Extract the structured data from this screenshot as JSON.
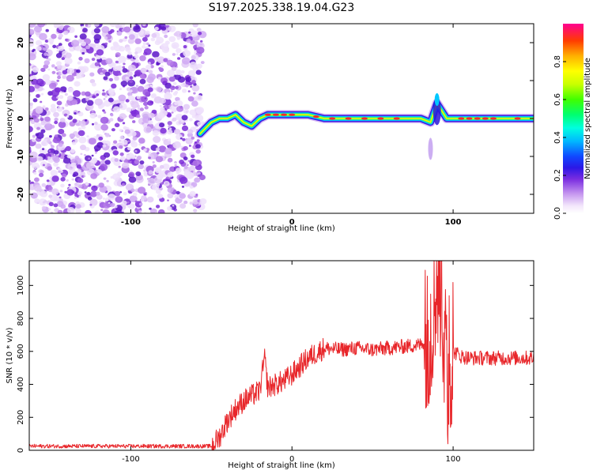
{
  "title": "S197.2025.338.19.04.G23",
  "chart_data": [
    {
      "type": "heatmap",
      "name": "spectrogram",
      "xlabel": "Height of straight line (km)",
      "ylabel": "Frequency (Hz)",
      "xlim": [
        -163,
        150
      ],
      "ylim": [
        -25,
        25
      ],
      "xticks": [
        -100,
        0,
        100
      ],
      "yticks": [
        20,
        10,
        0,
        -10,
        -20
      ],
      "noise_region_x": [
        -163,
        -57
      ],
      "signal_ridge": {
        "x": [
          -57,
          -50,
          -45,
          -40,
          -35,
          -30,
          -25,
          -20,
          -15,
          -10,
          0,
          10,
          20,
          40,
          60,
          80,
          86,
          90,
          93,
          96,
          100,
          110,
          120,
          140,
          150
        ],
        "freq": [
          -4,
          -1,
          0,
          0,
          1,
          -1,
          -2,
          0,
          1,
          1,
          1,
          1,
          0,
          0,
          0,
          0,
          -1,
          4,
          2,
          0,
          0,
          0,
          0,
          0,
          0
        ]
      },
      "colorbar": {
        "label": "Normalized spectral amplitude",
        "range": [
          0.0,
          1.0
        ],
        "ticks": [
          0.0,
          0.2,
          0.4,
          0.6,
          0.8
        ]
      }
    },
    {
      "type": "line",
      "name": "snr",
      "xlabel": "Height of straight line (km)",
      "ylabel": "SNR (10 * v/v)",
      "xlim": [
        -163,
        150
      ],
      "ylim": [
        0,
        1150
      ],
      "xticks": [
        -100,
        0,
        100
      ],
      "yticks": [
        0,
        200,
        400,
        600,
        800,
        1000
      ],
      "color": "#e8262a",
      "series": [
        {
          "name": "SNR",
          "x": [
            -163,
            -140,
            -120,
            -100,
            -80,
            -60,
            -50,
            -45,
            -40,
            -35,
            -30,
            -25,
            -20,
            -17,
            -15,
            -10,
            -5,
            0,
            10,
            20,
            30,
            40,
            50,
            60,
            70,
            80,
            85,
            88,
            90,
            92,
            94,
            96,
            98,
            100,
            105,
            110,
            120,
            130,
            140,
            150
          ],
          "values": [
            25,
            25,
            25,
            25,
            25,
            25,
            25,
            80,
            180,
            250,
            300,
            330,
            360,
            560,
            380,
            400,
            420,
            460,
            560,
            620,
            610,
            620,
            610,
            620,
            630,
            640,
            700,
            900,
            1100,
            1000,
            800,
            400,
            550,
            600,
            570,
            560,
            560,
            560,
            560,
            560
          ]
        }
      ]
    }
  ]
}
